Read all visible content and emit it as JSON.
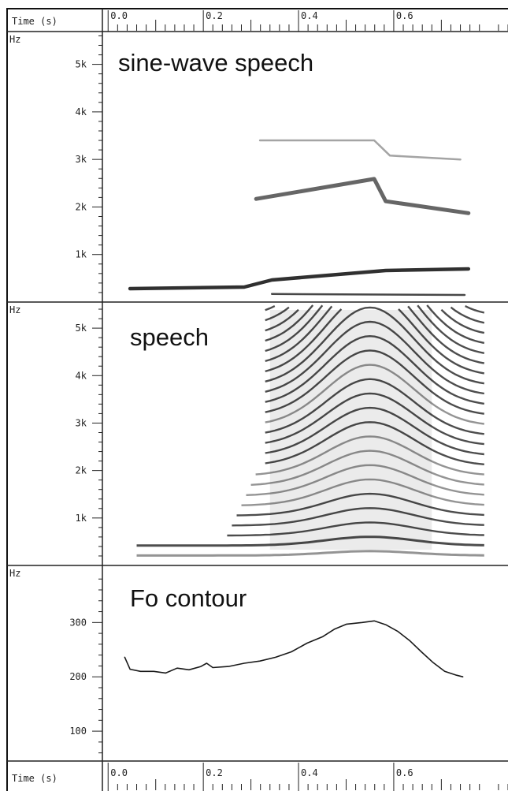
{
  "x_axis": {
    "label": "Time (s)",
    "xlim": [
      -0.012,
      0.84
    ],
    "xticks": [
      {
        "value": 0,
        "label": "0.0"
      },
      0.2,
      0.4,
      0.6
    ]
  },
  "chart_data": [
    {
      "type": "line",
      "annotation": "sine-wave speech",
      "ylabel": "Hz",
      "ylim": [
        0,
        5690
      ],
      "yticks": [
        {
          "value": 1000,
          "label": "1k"
        },
        {
          "value": 2000,
          "label": "2k"
        },
        {
          "value": 3000,
          "label": "3k"
        },
        {
          "value": 4000,
          "label": "4k"
        },
        {
          "value": 5000,
          "label": "5k"
        }
      ],
      "series": [
        {
          "color": "#1a1a1a",
          "x": [
            0.046,
            0.286,
            0.344,
            0.583,
            0.757
          ],
          "values": [
            282,
            315,
            464,
            663,
            697
          ]
        },
        {
          "color": "#333333",
          "x": [
            0.344,
            0.749
          ],
          "values": [
            170,
            150
          ]
        },
        {
          "color": "#555555",
          "x": [
            0.311,
            0.559,
            0.583,
            0.757
          ],
          "values": [
            2170,
            2590,
            2120,
            1870
          ]
        },
        {
          "color": "#9a9a9a",
          "x": [
            0.319,
            0.559,
            0.592,
            0.74
          ],
          "values": [
            3400,
            3400,
            3080,
            3000
          ]
        }
      ]
    },
    {
      "type": "spectrogram",
      "annotation": "speech",
      "ylabel": "Hz",
      "ylim": [
        0,
        5550
      ],
      "yticks": [
        {
          "value": 1000,
          "label": "1k"
        },
        {
          "value": 2000,
          "label": "2k"
        },
        {
          "value": 3000,
          "label": "3k"
        },
        {
          "value": 4000,
          "label": "4k"
        },
        {
          "value": 5000,
          "label": "5k"
        }
      ]
    },
    {
      "type": "line",
      "annotation": "Fo contour",
      "ylabel": "Hz",
      "ylim": [
        45,
        405
      ],
      "yticks": [
        100,
        200,
        300
      ],
      "series": [
        {
          "color": "#000000",
          "x": [
            0.035,
            0.046,
            0.068,
            0.096,
            0.121,
            0.145,
            0.17,
            0.195,
            0.207,
            0.22,
            0.253,
            0.286,
            0.319,
            0.352,
            0.385,
            0.418,
            0.451,
            0.476,
            0.501,
            0.534,
            0.559,
            0.583,
            0.608,
            0.633,
            0.658,
            0.683,
            0.707,
            0.732,
            0.745
          ],
          "values": [
            236,
            214,
            210,
            210,
            207,
            216,
            213,
            219,
            225,
            217,
            219,
            225,
            229,
            236,
            246,
            262,
            274,
            288,
            297,
            300,
            303,
            296,
            284,
            267,
            246,
            226,
            210,
            203,
            200
          ]
        }
      ]
    }
  ]
}
